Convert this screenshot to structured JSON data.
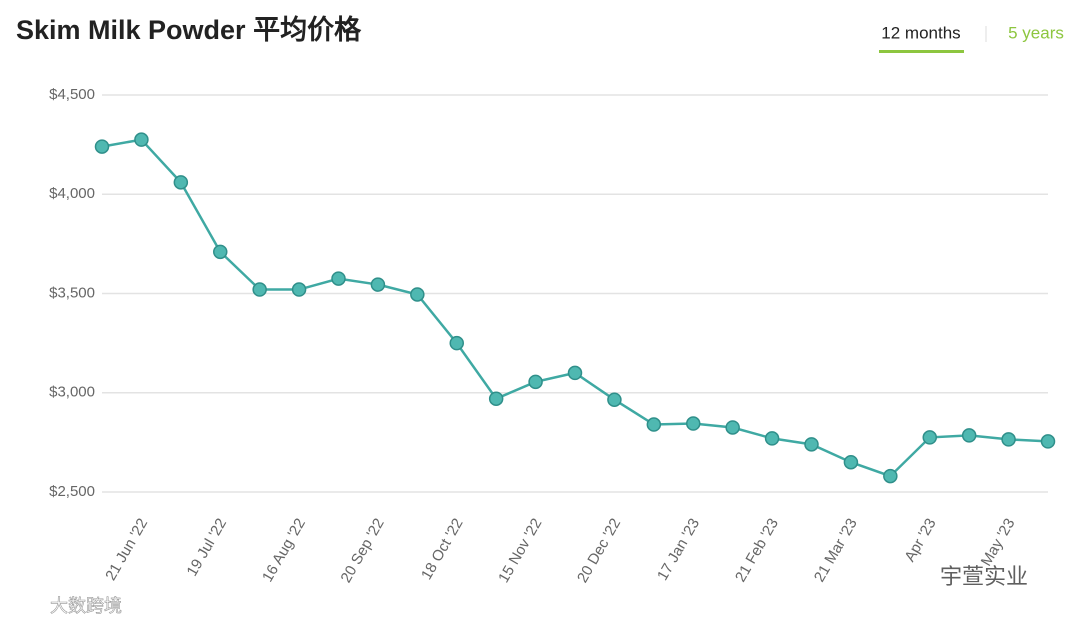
{
  "chart_data": {
    "type": "line",
    "title": "Skim Milk Powder 平均价格",
    "tabs": [
      "12 months",
      "5 years"
    ],
    "watermarks": [
      "宇萱实业",
      "大数跨境"
    ],
    "categories": [
      null,
      "21 Jun '22",
      null,
      "19 Jul '22",
      null,
      "16 Aug '22",
      null,
      "20 Sep '22",
      null,
      "18 Oct '22",
      null,
      "15 Nov '22",
      null,
      "20 Dec '22",
      null,
      "17 Jan '23",
      null,
      "21 Feb '23",
      null,
      "21 Mar '23",
      null,
      "Apr '23",
      null,
      "May '23",
      null
    ],
    "series": [
      {
        "name": "Skim Milk Powder",
        "color": "#3fa9a3",
        "values": [
          4240,
          4275,
          4060,
          3710,
          3520,
          3520,
          3575,
          3545,
          3495,
          3250,
          2970,
          3055,
          3100,
          2965,
          2840,
          2845,
          2825,
          2770,
          2740,
          2650,
          2580,
          2775,
          2785,
          2765,
          2755
        ]
      }
    ],
    "ylim": [
      2500,
      4500
    ],
    "yticks": [
      {
        "value": 2500,
        "label": "$2,500"
      },
      {
        "value": 3000,
        "label": "$3,000"
      },
      {
        "value": 3500,
        "label": "$3,500"
      },
      {
        "value": 4000,
        "label": "$4,000"
      },
      {
        "value": 4500,
        "label": "$4,500"
      }
    ],
    "grid": true
  }
}
